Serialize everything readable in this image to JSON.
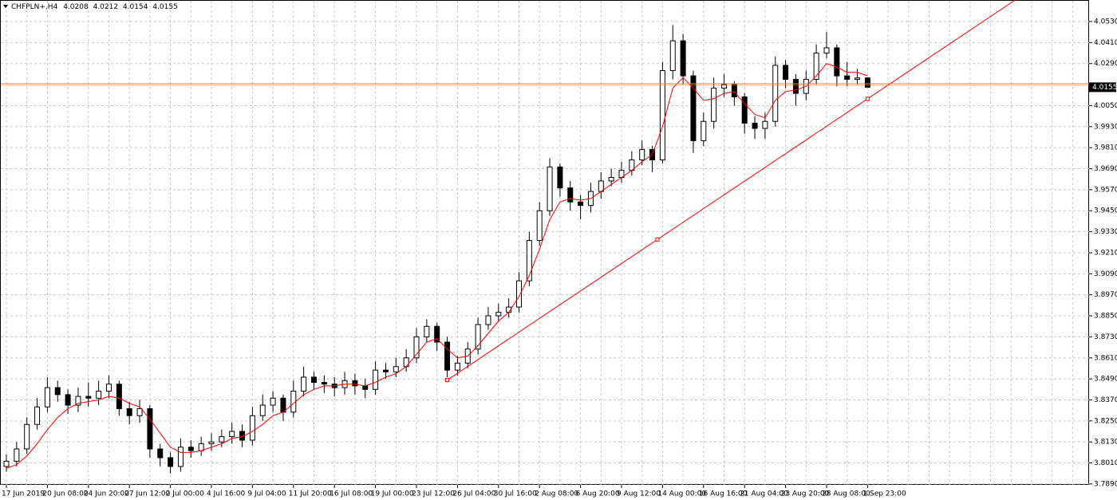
{
  "chart_data": {
    "type": "candlestick",
    "symbol": "CHFPLN+,H4",
    "ylim": [
      3.7885,
      4.0653
    ],
    "yticks": [
      {
        "value": 4.053,
        "label": "4.0530"
      },
      {
        "value": 4.041,
        "label": "4.0410"
      },
      {
        "value": 4.029,
        "label": "4.0290"
      },
      {
        "value": 4.005,
        "label": "4.0050"
      },
      {
        "value": 3.993,
        "label": "3.9930"
      },
      {
        "value": 3.981,
        "label": "3.9810"
      },
      {
        "value": 3.969,
        "label": "3.9690"
      },
      {
        "value": 3.957,
        "label": "3.9570"
      },
      {
        "value": 3.945,
        "label": "3.9450"
      },
      {
        "value": 3.933,
        "label": "3.9330"
      },
      {
        "value": 3.921,
        "label": "3.9210"
      },
      {
        "value": 3.909,
        "label": "3.9090"
      },
      {
        "value": 3.897,
        "label": "3.8970"
      },
      {
        "value": 3.885,
        "label": "3.8850"
      },
      {
        "value": 3.873,
        "label": "3.8730"
      },
      {
        "value": 3.861,
        "label": "3.8610"
      },
      {
        "value": 3.849,
        "label": "3.8490"
      },
      {
        "value": 3.837,
        "label": "3.8370"
      },
      {
        "value": 3.825,
        "label": "3.8250"
      },
      {
        "value": 3.813,
        "label": "3.8130"
      },
      {
        "value": 3.801,
        "label": "3.8010"
      },
      {
        "value": 3.789,
        "label": "3.7890"
      }
    ],
    "grid": true,
    "categories": [
      "17 Jun 2019",
      null,
      null,
      null,
      "20 Jun 08:00",
      null,
      null,
      null,
      "24 Jun 20:00",
      null,
      null,
      null,
      "27 Jun 12:00",
      null,
      null,
      null,
      "2 Jul 00:00",
      null,
      null,
      null,
      "4 Jul 16:00",
      null,
      null,
      null,
      "9 Jul 04:00",
      null,
      null,
      null,
      "11 Jul 20:00",
      null,
      null,
      null,
      "16 Jul 08:00",
      null,
      null,
      null,
      "19 Jul 00:00",
      null,
      null,
      null,
      "23 Jul 12:00",
      null,
      null,
      null,
      "26 Jul 04:00",
      null,
      null,
      null,
      "30 Jul 16:00",
      null,
      null,
      null,
      "2 Aug 08:00",
      null,
      null,
      null,
      "6 Aug 20:00",
      null,
      null,
      null,
      "9 Aug 12:00",
      null,
      null,
      null,
      "14 Aug 00:00",
      null,
      null,
      null,
      "16 Aug 16:00",
      null,
      null,
      null,
      "21 Aug 04:00",
      null,
      null,
      null,
      "23 Aug 20:00",
      null,
      null,
      null,
      "28 Aug 08:00",
      null,
      null,
      null,
      "1 Sep 23:00"
    ],
    "open": [
      3.799,
      3.802,
      3.809,
      3.823,
      3.833,
      3.844,
      3.84,
      3.834,
      3.839,
      3.838,
      3.842,
      3.846,
      3.832,
      3.828,
      3.832,
      3.809,
      3.804,
      3.799,
      3.81,
      3.808,
      3.812,
      3.813,
      3.816,
      3.819,
      3.814,
      3.828,
      3.834,
      3.838,
      3.83,
      3.842,
      3.85,
      3.847,
      3.846,
      3.844,
      3.848,
      3.845,
      3.843,
      3.854,
      3.853,
      3.856,
      3.861,
      3.873,
      3.879,
      3.87,
      3.854,
      3.858,
      3.866,
      3.88,
      3.885,
      3.887,
      3.89,
      3.905,
      3.928,
      3.945,
      3.97,
      3.958,
      3.95,
      3.948,
      3.956,
      3.962,
      3.964,
      3.968,
      3.974,
      3.98,
      3.974,
      4.025,
      4.042,
      4.022,
      3.985,
      3.996,
      4.015,
      4.017,
      4.01,
      3.995,
      3.992,
      3.996,
      4.028,
      4.02,
      4.012,
      4.02,
      4.035,
      4.038,
      4.022,
      4.02,
      4.0208
    ],
    "high": [
      3.806,
      3.813,
      3.827,
      3.838,
      3.85,
      3.848,
      3.843,
      3.844,
      3.847,
      3.848,
      3.851,
      3.848,
      3.836,
      3.837,
      3.834,
      3.812,
      3.807,
      3.815,
      3.814,
      3.816,
      3.818,
      3.82,
      3.824,
      3.823,
      3.833,
      3.84,
      3.842,
      3.84,
      3.848,
      3.856,
      3.853,
      3.851,
      3.85,
      3.853,
      3.852,
      3.849,
      3.859,
      3.858,
      3.861,
      3.866,
      3.878,
      3.883,
      3.881,
      3.873,
      3.862,
      3.87,
      3.884,
      3.89,
      3.892,
      3.895,
      3.91,
      3.933,
      3.95,
      3.975,
      3.972,
      3.962,
      3.954,
      3.961,
      3.967,
      3.969,
      3.973,
      3.979,
      3.985,
      3.982,
      4.03,
      4.051,
      4.046,
      4.025,
      4.001,
      4.021,
      4.023,
      4.019,
      4.012,
      3.999,
      4.001,
      4.033,
      4.031,
      4.023,
      4.025,
      4.04,
      4.047,
      4.04,
      4.03,
      4.026,
      4.0212
    ],
    "low": [
      3.796,
      3.799,
      3.806,
      3.82,
      3.83,
      3.836,
      3.829,
      3.83,
      3.833,
      3.834,
      3.838,
      3.828,
      3.823,
      3.824,
      3.804,
      3.799,
      3.795,
      3.796,
      3.804,
      3.805,
      3.808,
      3.81,
      3.812,
      3.81,
      3.811,
      3.825,
      3.83,
      3.825,
      3.827,
      3.839,
      3.843,
      3.841,
      3.839,
      3.84,
      3.84,
      3.838,
      3.84,
      3.849,
      3.85,
      3.853,
      3.858,
      3.87,
      3.865,
      3.85,
      3.851,
      3.855,
      3.863,
      3.877,
      3.882,
      3.884,
      3.887,
      3.902,
      3.925,
      3.942,
      3.953,
      3.945,
      3.94,
      3.944,
      3.952,
      3.959,
      3.961,
      3.965,
      3.971,
      3.967,
      3.972,
      4.02,
      4.017,
      3.978,
      3.982,
      3.992,
      4.01,
      4.005,
      3.989,
      3.986,
      3.986,
      3.993,
      4.015,
      4.005,
      4.008,
      4.017,
      4.032,
      4.016,
      4.016,
      4.017,
      4.0154
    ],
    "close": [
      3.802,
      3.809,
      3.823,
      3.833,
      3.844,
      3.84,
      3.834,
      3.839,
      3.838,
      3.842,
      3.846,
      3.832,
      3.828,
      3.832,
      3.809,
      3.804,
      3.799,
      3.81,
      3.808,
      3.812,
      3.813,
      3.816,
      3.819,
      3.814,
      3.828,
      3.834,
      3.838,
      3.83,
      3.842,
      3.85,
      3.847,
      3.846,
      3.844,
      3.848,
      3.845,
      3.843,
      3.854,
      3.853,
      3.856,
      3.861,
      3.873,
      3.879,
      3.87,
      3.854,
      3.858,
      3.866,
      3.88,
      3.885,
      3.887,
      3.89,
      3.905,
      3.928,
      3.945,
      3.97,
      3.958,
      3.95,
      3.948,
      3.956,
      3.962,
      3.964,
      3.968,
      3.974,
      3.98,
      3.974,
      4.025,
      4.042,
      4.022,
      3.985,
      3.996,
      4.015,
      4.017,
      4.01,
      3.995,
      3.992,
      3.996,
      4.028,
      4.02,
      4.012,
      4.02,
      4.035,
      4.038,
      4.022,
      4.02,
      4.0208,
      4.0155
    ],
    "ma": {
      "color": "#ff0000",
      "values": [
        3.798,
        3.8,
        3.805,
        3.812,
        3.82,
        3.827,
        3.832,
        3.835,
        3.836,
        3.837,
        3.839,
        3.838,
        3.835,
        3.833,
        3.826,
        3.818,
        3.81,
        3.807,
        3.807,
        3.808,
        3.81,
        3.812,
        3.815,
        3.816,
        3.819,
        3.823,
        3.828,
        3.83,
        3.835,
        3.84,
        3.843,
        3.845,
        3.845,
        3.846,
        3.846,
        3.845,
        3.847,
        3.85,
        3.852,
        3.856,
        3.863,
        3.87,
        3.872,
        3.866,
        3.861,
        3.862,
        3.868,
        3.875,
        3.882,
        3.887,
        3.896,
        3.908,
        3.923,
        3.94,
        3.95,
        3.952,
        3.951,
        3.952,
        3.956,
        3.96,
        3.964,
        3.968,
        3.973,
        3.977,
        3.993,
        4.015,
        4.021,
        4.015,
        4.008,
        4.009,
        4.012,
        4.013,
        4.006,
        4.0,
        3.998,
        4.008,
        4.013,
        4.014,
        4.016,
        4.022,
        4.029,
        4.027,
        4.024,
        4.024,
        4.022
      ]
    },
    "trendline": {
      "color": "#ff0000",
      "x": [
        43,
        84
      ],
      "y": [
        3.8483,
        4.0089
      ]
    },
    "hline": {
      "color": "#ff7f27",
      "value": 4.0175
    }
  }
}
